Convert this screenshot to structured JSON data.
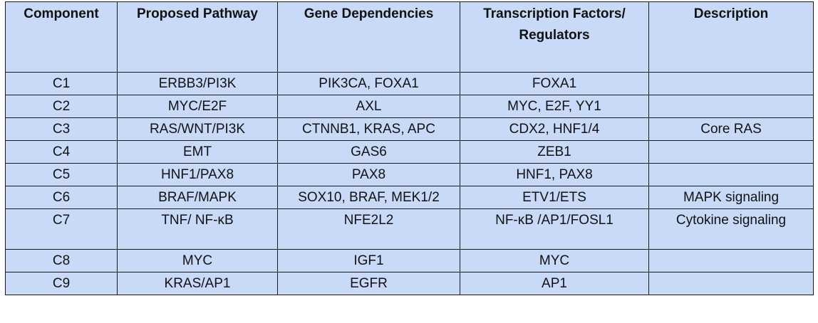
{
  "table": {
    "headers": [
      "Component",
      "Proposed Pathway",
      "Gene Dependencies",
      "Transcription Factors/ Regulators",
      "Description"
    ],
    "rows": [
      [
        "C1",
        "ERBB3/PI3K",
        "PIK3CA, FOXA1",
        "FOXA1",
        ""
      ],
      [
        "C2",
        "MYC/E2F",
        "AXL",
        "MYC, E2F, YY1",
        ""
      ],
      [
        "C3",
        "RAS/WNT/PI3K",
        "CTNNB1, KRAS, APC",
        "CDX2, HNF1/4",
        "Core RAS"
      ],
      [
        "C4",
        "EMT",
        "GAS6",
        "ZEB1",
        ""
      ],
      [
        "C5",
        "HNF1/PAX8",
        "PAX8",
        "HNF1, PAX8",
        ""
      ],
      [
        "C6",
        "BRAF/MAPK",
        "SOX10, BRAF, MEK1/2",
        "ETV1/ETS",
        "MAPK signaling"
      ],
      [
        "C7",
        "TNF/ NF-κB",
        "NFE2L2",
        "NF-κB /AP1/FOSL1",
        "Cytokine signaling"
      ],
      [
        "C8",
        "MYC",
        "IGF1",
        "MYC",
        ""
      ],
      [
        "C9",
        "KRAS/AP1",
        "EGFR",
        "AP1",
        ""
      ]
    ]
  }
}
